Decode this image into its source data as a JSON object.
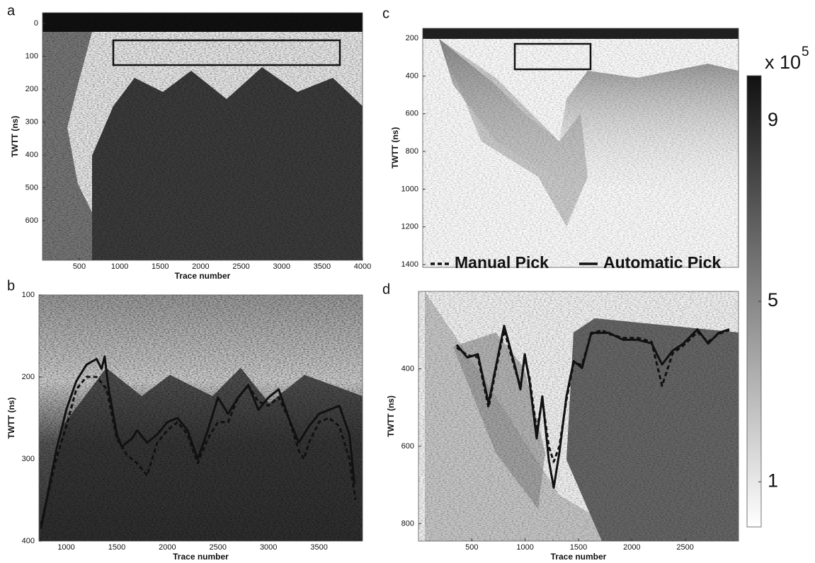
{
  "chart_data": [
    {
      "type": "radargram",
      "label": "a",
      "xlabel": "Trace number",
      "ylabel": "TWTT (ns)",
      "xlim": [
        45,
        4000
      ],
      "xticks": [
        500,
        1000,
        1500,
        2000,
        2500,
        3000,
        3500,
        4000
      ],
      "ylim": [
        -32,
        720
      ],
      "yticks": [
        0,
        100,
        200,
        300,
        400,
        500,
        600
      ],
      "y_inverted": true
    },
    {
      "type": "radargram",
      "label": "b",
      "xlabel": "Trace number",
      "ylabel": "TWTT (ns)",
      "xlim": [
        730,
        3930
      ],
      "xticks": [
        1000,
        1500,
        2000,
        2500,
        3000,
        3500
      ],
      "ylim": [
        100,
        400
      ],
      "yticks": [
        100,
        200,
        300,
        400
      ],
      "y_inverted": true,
      "series": [
        {
          "line_style": "dashed",
          "color": "#111111",
          "x": [
            750,
            900,
            1000,
            1100,
            1200,
            1300,
            1400,
            1500,
            1600,
            1700,
            1800,
            1900,
            2000,
            2100,
            2200,
            2300,
            2400,
            2500,
            2600,
            2700,
            2800,
            2900,
            3000,
            3100,
            3200,
            3300,
            3350,
            3400,
            3500,
            3600,
            3700,
            3800,
            3860
          ],
          "values": [
            380,
            300,
            260,
            215,
            200,
            200,
            215,
            275,
            295,
            305,
            320,
            280,
            265,
            255,
            270,
            305,
            275,
            255,
            255,
            225,
            210,
            230,
            235,
            225,
            250,
            290,
            300,
            280,
            255,
            250,
            260,
            300,
            350
          ]
        },
        {
          "line_style": "solid",
          "color": "#111111",
          "x": [
            750,
            900,
            1000,
            1100,
            1200,
            1300,
            1350,
            1380,
            1420,
            1500,
            1550,
            1650,
            1700,
            1800,
            1900,
            2000,
            2100,
            2200,
            2300,
            2400,
            2500,
            2600,
            2700,
            2800,
            2900,
            3000,
            3100,
            3200,
            3300,
            3400,
            3500,
            3600,
            3700,
            3800,
            3850
          ],
          "values": [
            385,
            290,
            240,
            205,
            185,
            178,
            190,
            175,
            215,
            270,
            285,
            275,
            265,
            280,
            270,
            255,
            250,
            265,
            300,
            265,
            225,
            245,
            225,
            210,
            240,
            225,
            215,
            250,
            280,
            260,
            245,
            240,
            235,
            270,
            330
          ]
        }
      ]
    },
    {
      "type": "radargram",
      "label": "c",
      "ylabel": "TWTT (ns)",
      "ylim": [
        147,
        1415
      ],
      "yticks": [
        200,
        400,
        600,
        800,
        1000,
        1200,
        1400
      ],
      "y_inverted": true
    },
    {
      "type": "radargram",
      "label": "d",
      "xlabel": "Trace number",
      "ylabel": "TWTT (ns)",
      "xlim": [
        0,
        3000
      ],
      "xticks": [
        500,
        1000,
        1500,
        2000,
        2500
      ],
      "ylim": [
        200,
        845
      ],
      "yticks": [
        400,
        600,
        800
      ],
      "y_inverted": true,
      "series": [
        {
          "name": "Manual Pick",
          "line_style": "dashed",
          "color": "#111111",
          "x": [
            358,
            458,
            557,
            657,
            723,
            803,
            909,
            956,
            996,
            1042,
            1108,
            1161,
            1221,
            1268,
            1321,
            1387,
            1454,
            1533,
            1619,
            1719,
            1785,
            1918,
            2051,
            2184,
            2283,
            2383,
            2482,
            2615,
            2715,
            2814,
            2914
          ],
          "values": [
            345,
            365,
            370,
            500,
            405,
            300,
            405,
            445,
            370,
            425,
            560,
            480,
            600,
            640,
            600,
            480,
            385,
            390,
            310,
            300,
            310,
            320,
            320,
            330,
            444,
            360,
            340,
            305,
            330,
            310,
            300
          ]
        },
        {
          "name": "Automatic Pick",
          "line_style": "solid",
          "color": "#111111",
          "x": [
            358,
            458,
            557,
            657,
            723,
            803,
            909,
            956,
            996,
            1042,
            1108,
            1161,
            1221,
            1268,
            1321,
            1387,
            1454,
            1533,
            1619,
            1719,
            1785,
            1918,
            2051,
            2184,
            2283,
            2383,
            2482,
            2615,
            2715,
            2814,
            2914
          ],
          "values": [
            338,
            371,
            362,
            489,
            398,
            289,
            398,
            453,
            362,
            435,
            580,
            471,
            635,
            707,
            616,
            471,
            380,
            398,
            307,
            307,
            307,
            325,
            325,
            334,
            389,
            353,
            335,
            298,
            335,
            307,
            298
          ]
        }
      ]
    },
    {
      "type": "colorbar",
      "label": "x 10",
      "label_exponent": "5",
      "ylim": [
        0,
        10
      ],
      "yticks": [
        1,
        5,
        9
      ]
    }
  ]
}
